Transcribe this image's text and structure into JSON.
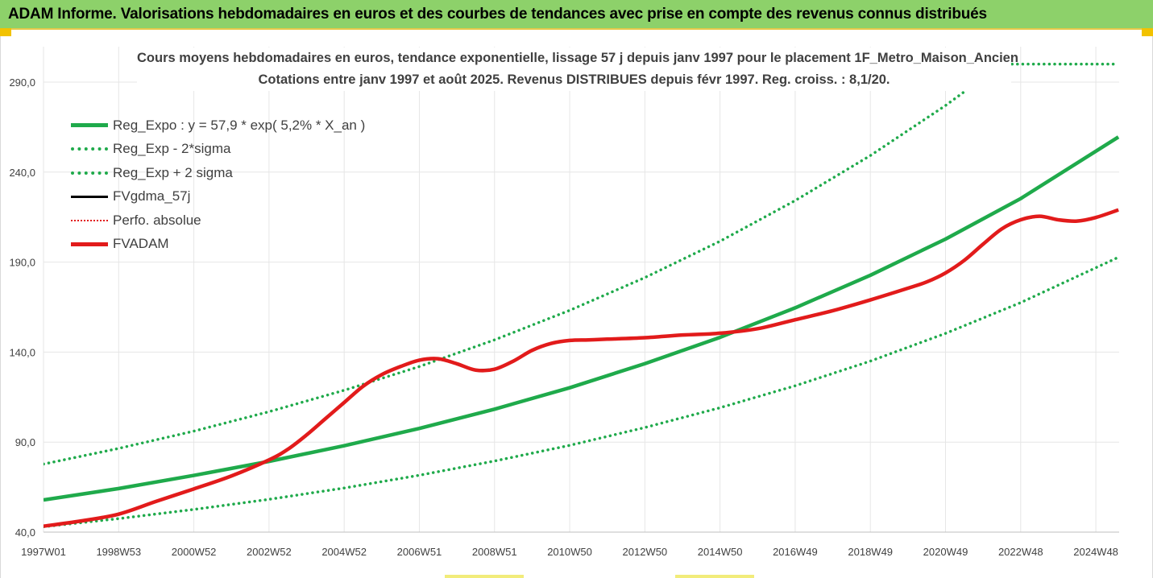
{
  "banner": {
    "title": "ADAM Informe. Valorisations hebdomadaires en euros et des courbes de tendances avec prise en compte des revenus connus distribués"
  },
  "colors": {
    "banner_bg": "#8dd16a",
    "reg_green": "#1faa4b",
    "fv_red": "#e21b1b",
    "perfo_red": "#e21b1b",
    "gdma_black": "#000000",
    "gridline": "#e6e6e6",
    "text": "#404040"
  },
  "chart_data": {
    "type": "line",
    "title_lines": [
      "Cours moyens hebdomadaires en euros, tendance exponentielle, lissage 57 j depuis janv 1997 pour le placement 1F_Metro_Maison_Ancien",
      "Cotations entre janv 1997 et août 2025. Revenus DISTRIBUES depuis févr 1997. Reg. croiss. : 8,1/20."
    ],
    "x_range": [
      1997.0,
      2025.62
    ],
    "x_ticks": [
      {
        "label": "1997W01",
        "x": 1997.0
      },
      {
        "label": "1998W53",
        "x": 1999.0
      },
      {
        "label": "2000W52",
        "x": 2001.0
      },
      {
        "label": "2002W52",
        "x": 2003.0
      },
      {
        "label": "2004W52",
        "x": 2005.0
      },
      {
        "label": "2006W51",
        "x": 2007.0
      },
      {
        "label": "2008W51",
        "x": 2009.0
      },
      {
        "label": "2010W50",
        "x": 2011.0
      },
      {
        "label": "2012W50",
        "x": 2013.0
      },
      {
        "label": "2014W50",
        "x": 2015.0
      },
      {
        "label": "2016W49",
        "x": 2017.0
      },
      {
        "label": "2018W49",
        "x": 2019.0
      },
      {
        "label": "2020W49",
        "x": 2021.0
      },
      {
        "label": "2022W48",
        "x": 2023.0
      },
      {
        "label": "2024W48",
        "x": 2025.0
      }
    ],
    "y_range": [
      40,
      290
    ],
    "y_ticks": [
      "40,0",
      "90,0",
      "140,0",
      "190,0",
      "240,0",
      "290,0"
    ],
    "y_tick_values": [
      40,
      90,
      140,
      190,
      240,
      290
    ],
    "grid": "vertical and horizontal",
    "legend_position": "top-left",
    "series": [
      {
        "name": "Reg_Expo : y = 57,9 * exp( 5,2% *  X_an )",
        "style": "solid-thick",
        "color": "#1faa4b",
        "x": [
          1997,
          1999,
          2001,
          2003,
          2005,
          2007,
          2009,
          2011,
          2013,
          2015,
          2017,
          2019,
          2021,
          2023,
          2025.6
        ],
        "y": [
          57.9,
          64.2,
          71.5,
          79.3,
          88.0,
          97.6,
          108.3,
          120.2,
          133.6,
          148.2,
          164.6,
          182.7,
          202.8,
          225.3,
          259.5
        ]
      },
      {
        "name": "Reg_Exp - 2*sigma",
        "style": "dotted",
        "color": "#1faa4b",
        "x": [
          1997,
          1999,
          2001,
          2003,
          2005,
          2007,
          2009,
          2011,
          2013,
          2015,
          2017,
          2019,
          2021,
          2023,
          2025.6
        ],
        "y": [
          43.0,
          47.5,
          52.6,
          58.2,
          64.5,
          71.6,
          79.5,
          88.2,
          98.1,
          109.1,
          121.3,
          135.0,
          150.4,
          167.5,
          192.7
        ]
      },
      {
        "name": "Reg_Exp + 2 sigma",
        "style": "dotted",
        "color": "#1faa4b",
        "x": [
          1997,
          1999,
          2001,
          2003,
          2005,
          2007,
          2009,
          2011,
          2013,
          2015,
          2017,
          2019,
          2021,
          2022.5,
          2025.6
        ],
        "y": [
          77.8,
          86.5,
          96.1,
          106.9,
          118.8,
          132.0,
          146.8,
          163.2,
          181.4,
          201.6,
          224.2,
          249.2,
          277.0,
          300.0,
          300.0
        ]
      },
      {
        "name": "FVgdma_57j",
        "style": "solid",
        "color": "#000000",
        "x": [
          1997,
          1998,
          1999,
          2000,
          2001,
          2002,
          2003,
          2003.5,
          2004,
          2004.5,
          2005,
          2005.5,
          2006,
          2006.5,
          2007,
          2007.5,
          2008,
          2008.5,
          2009,
          2009.5,
          2010,
          2010.5,
          2011,
          2011.5,
          2012,
          2013,
          2014,
          2015,
          2016,
          2017,
          2018,
          2019,
          2020,
          2020.5,
          2021,
          2021.5,
          2022,
          2022.5,
          2023,
          2023.5,
          2024,
          2024.5,
          2025,
          2025.6
        ],
        "y": [
          43.3,
          46.2,
          50.0,
          57.1,
          64.0,
          71.2,
          80.1,
          86.0,
          94.0,
          103.0,
          112.0,
          121.0,
          127.5,
          132.0,
          135.5,
          136.3,
          133.5,
          130.0,
          130.5,
          135.0,
          141.0,
          144.8,
          146.5,
          146.8,
          147.2,
          148.0,
          149.5,
          150.5,
          153.0,
          158.0,
          163.0,
          169.0,
          175.5,
          179.0,
          184.0,
          191.0,
          200.0,
          208.5,
          213.5,
          215.5,
          213.5,
          212.8,
          214.8,
          219.0
        ]
      },
      {
        "name": "Perfo. absolue",
        "style": "dotted",
        "color": "#e21b1b",
        "x": [],
        "y": []
      },
      {
        "name": "FVADAM",
        "style": "solid-thick",
        "color": "#e21b1b",
        "x": [
          1997,
          1998,
          1999,
          2000,
          2001,
          2002,
          2003,
          2003.5,
          2004,
          2004.5,
          2005,
          2005.5,
          2006,
          2006.5,
          2007,
          2007.5,
          2008,
          2008.5,
          2009,
          2009.5,
          2010,
          2010.5,
          2011,
          2011.5,
          2012,
          2013,
          2014,
          2015,
          2016,
          2017,
          2018,
          2019,
          2020,
          2020.5,
          2021,
          2021.5,
          2022,
          2022.5,
          2023,
          2023.5,
          2024,
          2024.5,
          2025,
          2025.6
        ],
        "y": [
          43.3,
          46.2,
          50.0,
          57.1,
          64.0,
          71.2,
          80.1,
          86.0,
          94.0,
          103.0,
          112.0,
          121.0,
          127.5,
          132.0,
          135.5,
          136.3,
          133.5,
          130.0,
          130.5,
          135.0,
          141.0,
          144.8,
          146.5,
          146.8,
          147.2,
          148.0,
          149.5,
          150.5,
          153.0,
          158.0,
          163.0,
          169.0,
          175.5,
          179.0,
          184.0,
          191.0,
          200.0,
          208.5,
          213.5,
          215.5,
          213.5,
          212.8,
          214.8,
          219.0
        ]
      }
    ]
  }
}
